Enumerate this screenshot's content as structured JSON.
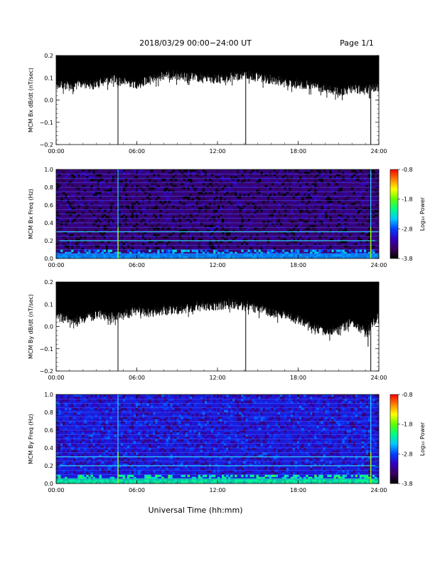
{
  "page": {
    "title": "2018/03/29  00:00−24:00 UT",
    "page_label": "Page 1/1",
    "xlabel": "Universal Time (hh:mm)"
  },
  "colorbar": {
    "label": "Log₁₀ Power",
    "ticks": [
      "-0.8",
      "-1.8",
      "-2.8",
      "-3.8"
    ],
    "gradient": [
      "#000000",
      "#3a0060",
      "#3000c0",
      "#0040ff",
      "#00c8ff",
      "#00ff80",
      "#60ff00",
      "#ffff00",
      "#ff8000",
      "#ff0000"
    ]
  },
  "chart_data": [
    {
      "type": "line",
      "ylabel": "MCM Bx dB/dt (nT/sec)",
      "xlim_hours": [
        0,
        24
      ],
      "xticks": [
        "00:00",
        "06:00",
        "12:00",
        "18:00",
        "24:00"
      ],
      "ylim": [
        -0.2,
        0.2
      ],
      "yticks": [
        "0.2",
        "0.1",
        "0.0",
        "−0.1",
        "−0.2"
      ],
      "envelope": {
        "hours": [
          0,
          1,
          2,
          3,
          4,
          5,
          6,
          7,
          8,
          9,
          10,
          11,
          12,
          13,
          14,
          15,
          16,
          17,
          18,
          19,
          20,
          21,
          22,
          23,
          24
        ],
        "upper": [
          0.2,
          0.2,
          0.2,
          0.2,
          0.2,
          0.2,
          0.2,
          0.2,
          0.2,
          0.2,
          0.2,
          0.2,
          0.2,
          0.2,
          0.2,
          0.2,
          0.2,
          0.2,
          0.2,
          0.2,
          0.2,
          0.2,
          0.2,
          0.2,
          0.2
        ],
        "lower": [
          0.1,
          0.09,
          0.1,
          0.1,
          0.12,
          0.11,
          0.1,
          0.12,
          0.14,
          0.14,
          0.13,
          0.13,
          0.12,
          0.13,
          0.14,
          0.13,
          0.12,
          0.11,
          0.1,
          0.09,
          0.08,
          0.06,
          0.08,
          0.07,
          0.09
        ]
      },
      "spikes": [
        {
          "hour": 4.6,
          "min": -0.2
        },
        {
          "hour": 14.1,
          "min": -0.2
        },
        {
          "hour": 23.4,
          "min": -0.2
        }
      ]
    },
    {
      "type": "heatmap",
      "ylabel": "MCM Bx Freq (Hz)",
      "xlim_hours": [
        0,
        24
      ],
      "xticks": [
        "00:00",
        "06:00",
        "12:00",
        "18:00",
        "24:00"
      ],
      "ylim": [
        0,
        1
      ],
      "yticks": [
        "1.0",
        "0.8",
        "0.6",
        "0.4",
        "0.2",
        "0.0"
      ],
      "power_range": [
        -3.8,
        -0.8
      ],
      "background_power": -3.4,
      "harmonic_lines_hz": [
        0.05,
        0.1,
        0.15,
        0.2,
        0.25,
        0.3,
        0.35,
        0.4,
        0.45,
        0.5,
        0.55,
        0.6,
        0.65,
        0.7,
        0.75,
        0.8,
        0.85,
        0.9,
        0.95,
        1.0
      ],
      "bright_lines_hz": [
        0.2,
        0.3
      ],
      "vertical_lines_hours": [
        4.6,
        23.4
      ],
      "low_freq_band_power": -2.6
    },
    {
      "type": "line",
      "ylabel": "MCM By dB/dt (nT/sec)",
      "xlim_hours": [
        0,
        24
      ],
      "xticks": [
        "00:00",
        "06:00",
        "12:00",
        "18:00",
        "24:00"
      ],
      "ylim": [
        -0.2,
        0.2
      ],
      "yticks": [
        "0.2",
        "0.1",
        "0.0",
        "−0.1",
        "−0.2"
      ],
      "envelope": {
        "hours": [
          0,
          1,
          2,
          3,
          4,
          5,
          6,
          7,
          8,
          9,
          10,
          11,
          12,
          13,
          14,
          15,
          16,
          17,
          18,
          19,
          20,
          21,
          22,
          23,
          24
        ],
        "upper": [
          0.2,
          0.2,
          0.2,
          0.2,
          0.2,
          0.2,
          0.2,
          0.2,
          0.2,
          0.2,
          0.2,
          0.2,
          0.2,
          0.2,
          0.2,
          0.2,
          0.2,
          0.2,
          0.2,
          0.2,
          0.2,
          0.2,
          0.2,
          0.2,
          0.2
        ],
        "lower": [
          0.08,
          0.05,
          0.06,
          0.08,
          0.07,
          0.08,
          0.1,
          0.09,
          0.1,
          0.1,
          0.11,
          0.12,
          0.12,
          0.13,
          0.12,
          0.11,
          0.09,
          0.08,
          0.06,
          0.03,
          0.0,
          0.01,
          0.05,
          0.0,
          0.08
        ]
      },
      "spikes": [
        {
          "hour": 4.6,
          "min": -0.2
        },
        {
          "hour": 14.1,
          "min": -0.2
        },
        {
          "hour": 23.2,
          "min": -0.09
        },
        {
          "hour": 23.4,
          "min": -0.2
        }
      ]
    },
    {
      "type": "heatmap",
      "ylabel": "MCM By Freq (Hz)",
      "xlim_hours": [
        0,
        24
      ],
      "xticks": [
        "00:00",
        "06:00",
        "12:00",
        "18:00",
        "24:00"
      ],
      "ylim": [
        0,
        1
      ],
      "yticks": [
        "1.0",
        "0.8",
        "0.6",
        "0.4",
        "0.2",
        "0.0"
      ],
      "power_range": [
        -3.8,
        -0.8
      ],
      "background_power": -3.0,
      "harmonic_lines_hz": [
        0.05,
        0.1,
        0.15,
        0.2,
        0.25,
        0.3,
        0.35,
        0.4,
        0.45,
        0.5,
        0.55,
        0.6,
        0.65,
        0.7,
        0.75,
        0.8,
        0.85,
        0.9,
        0.95,
        1.0
      ],
      "bright_lines_hz": [
        0.2,
        0.3
      ],
      "vertical_lines_hours": [
        4.6,
        23.4
      ],
      "low_freq_band_power": -2.2
    }
  ]
}
